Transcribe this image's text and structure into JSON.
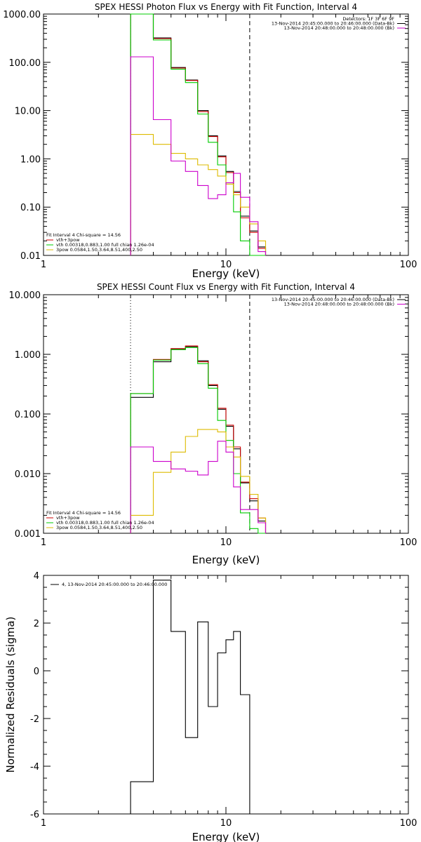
{
  "chart_data": [
    {
      "type": "line",
      "title": "SPEX HESSI Photon Flux vs Energy with Fit Function, Interval 4",
      "xlabel": "Energy (keV)",
      "ylabel": "",
      "xscale": "log",
      "yscale": "log",
      "xlim": [
        1,
        100
      ],
      "ylim": [
        0.01,
        1000
      ],
      "x_ticks": [
        "1",
        "10",
        "100"
      ],
      "y_ticks": [
        "0.01",
        "0.10",
        "1.00",
        "10.00",
        "100.00",
        "1000.00"
      ],
      "legend_top": [
        "Detectors: 1F 3F 6F 9F",
        "13-Nov-2014 20:45:00.000 to 20:46:00.000 (Data-Bk)",
        "13-Nov-2014 20:48:00.000 to 20:48:00.000 (Bk)"
      ],
      "legend_top_colors": [
        "",
        "#000000",
        "#cc00cc"
      ],
      "legend_bottom": [
        "Fit Interval 4   Chi-square = 14.56",
        "vth+3pow",
        "vth 0.00318,0.883,1.00  full chian 1.26e-04",
        "3pow 0.0584,1.50,3.64,8.51,400,2.50"
      ],
      "legend_bottom_colors": [
        "",
        "#cc0000",
        "#00cc00",
        "#ddbb00"
      ],
      "vlines": [
        {
          "x": 3.0,
          "style": "dotted"
        },
        {
          "x": 13.5,
          "style": "dashed"
        }
      ],
      "bin_edges": [
        3,
        4,
        5,
        6,
        7,
        8,
        9,
        10,
        11,
        12,
        13.5,
        15,
        16.5
      ],
      "series": [
        {
          "name": "Data-Bk",
          "color": "#000000",
          "values": [
            1000,
            320,
            78,
            43,
            10,
            3.0,
            1.15,
            0.55,
            0.21,
            0.065,
            0.032,
            0.015
          ]
        },
        {
          "name": "vth+3pow",
          "color": "#cc0000",
          "values": [
            1000,
            310,
            76,
            42,
            9.5,
            2.9,
            1.1,
            0.52,
            0.2,
            0.06,
            0.03,
            0.014
          ]
        },
        {
          "name": "vth",
          "color": "#00cc00",
          "values": [
            1000,
            290,
            72,
            38,
            8.5,
            2.2,
            0.75,
            0.3,
            0.08,
            0.02,
            0.01,
            0.004
          ]
        },
        {
          "name": "3pow",
          "color": "#ddbb00",
          "values": [
            3.2,
            2.0,
            1.3,
            1.0,
            0.75,
            0.6,
            0.44,
            0.3,
            0.18,
            0.1,
            0.045,
            0.02
          ]
        },
        {
          "name": "Bk",
          "color": "#cc00cc",
          "values": [
            130,
            6.5,
            0.9,
            0.55,
            0.28,
            0.15,
            0.18,
            0.32,
            0.5,
            0.16,
            0.05,
            0.012
          ]
        }
      ]
    },
    {
      "type": "line",
      "title": "SPEX HESSI Count Flux vs Energy with Fit Function, Interval 4",
      "xlabel": "Energy (keV)",
      "ylabel": "",
      "xscale": "log",
      "yscale": "log",
      "xlim": [
        1,
        100
      ],
      "ylim": [
        0.001,
        10
      ],
      "x_ticks": [
        "1",
        "10",
        "100"
      ],
      "y_ticks": [
        "0.001",
        "0.010",
        "0.100",
        "1.000",
        "10.000"
      ],
      "legend_top": [
        "13-Nov-2014 20:45:00.000 to 20:46:00.000 (Data-Bk)",
        "13-Nov-2014 20:48:00.000 to 20:48:00.000 (Bk)"
      ],
      "legend_top_colors": [
        "#000000",
        "#cc00cc"
      ],
      "legend_bottom": [
        "Fit Interval 4   Chi-square = 14.56",
        "vth+3pow",
        "vth 0.00318,0.883,1.00  full chian 1.26e-04",
        "3pow 0.0584,1.50,3.64,8.51,400,2.50"
      ],
      "legend_bottom_colors": [
        "",
        "#cc0000",
        "#00cc00",
        "#ddbb00"
      ],
      "vlines": [
        {
          "x": 3.0,
          "style": "dotted"
        },
        {
          "x": 13.5,
          "style": "dashed"
        }
      ],
      "bin_edges": [
        3,
        4,
        5,
        6,
        7,
        8,
        9,
        10,
        11,
        12,
        13.5,
        15,
        16.5
      ],
      "series": [
        {
          "name": "Data-Bk",
          "color": "#000000",
          "values": [
            0.19,
            0.75,
            1.22,
            1.35,
            0.78,
            0.3,
            0.12,
            0.062,
            0.026,
            0.007,
            0.0035,
            0.0016
          ]
        },
        {
          "name": "vth+3pow",
          "color": "#cc0000",
          "values": [
            0.22,
            0.82,
            1.25,
            1.38,
            0.75,
            0.31,
            0.125,
            0.065,
            0.028,
            0.0072,
            0.0038,
            0.0018
          ]
        },
        {
          "name": "vth",
          "color": "#00cc00",
          "values": [
            0.22,
            0.8,
            1.2,
            1.3,
            0.7,
            0.27,
            0.078,
            0.036,
            0.01,
            0.0022,
            0.0012,
            0.0007
          ]
        },
        {
          "name": "3pow",
          "color": "#ddbb00",
          "values": [
            0.002,
            0.0105,
            0.023,
            0.042,
            0.055,
            0.055,
            0.05,
            0.028,
            0.019,
            0.009,
            0.0045,
            0.0018
          ]
        },
        {
          "name": "Bk",
          "color": "#cc00cc",
          "values": [
            0.028,
            0.016,
            0.012,
            0.011,
            0.0095,
            0.016,
            0.035,
            0.023,
            0.006,
            0.0025,
            0.0025,
            0.0015
          ]
        }
      ]
    },
    {
      "type": "line",
      "title": "",
      "xlabel": "Energy (keV)",
      "ylabel": "Normalized Residuals (sigma)",
      "xscale": "log",
      "yscale": "linear",
      "xlim": [
        1,
        100
      ],
      "ylim": [
        -6,
        4
      ],
      "x_ticks": [
        "1",
        "10",
        "100"
      ],
      "y_ticks": [
        "-6",
        "-4",
        "-2",
        "0",
        "2",
        "4"
      ],
      "legend_top": [
        "4, 13-Nov-2014 20:45:00.000 to 20:46:00.000"
      ],
      "legend_top_colors": [
        "#000000"
      ],
      "bin_edges": [
        3,
        4,
        5,
        6,
        7,
        8,
        9,
        10,
        11,
        12,
        13.5
      ],
      "series": [
        {
          "name": "",
          "color": "#000000",
          "values": [
            -4.65,
            3.8,
            1.65,
            -2.8,
            2.05,
            -1.5,
            0.75,
            1.3,
            1.65,
            -1.0
          ]
        }
      ]
    }
  ]
}
